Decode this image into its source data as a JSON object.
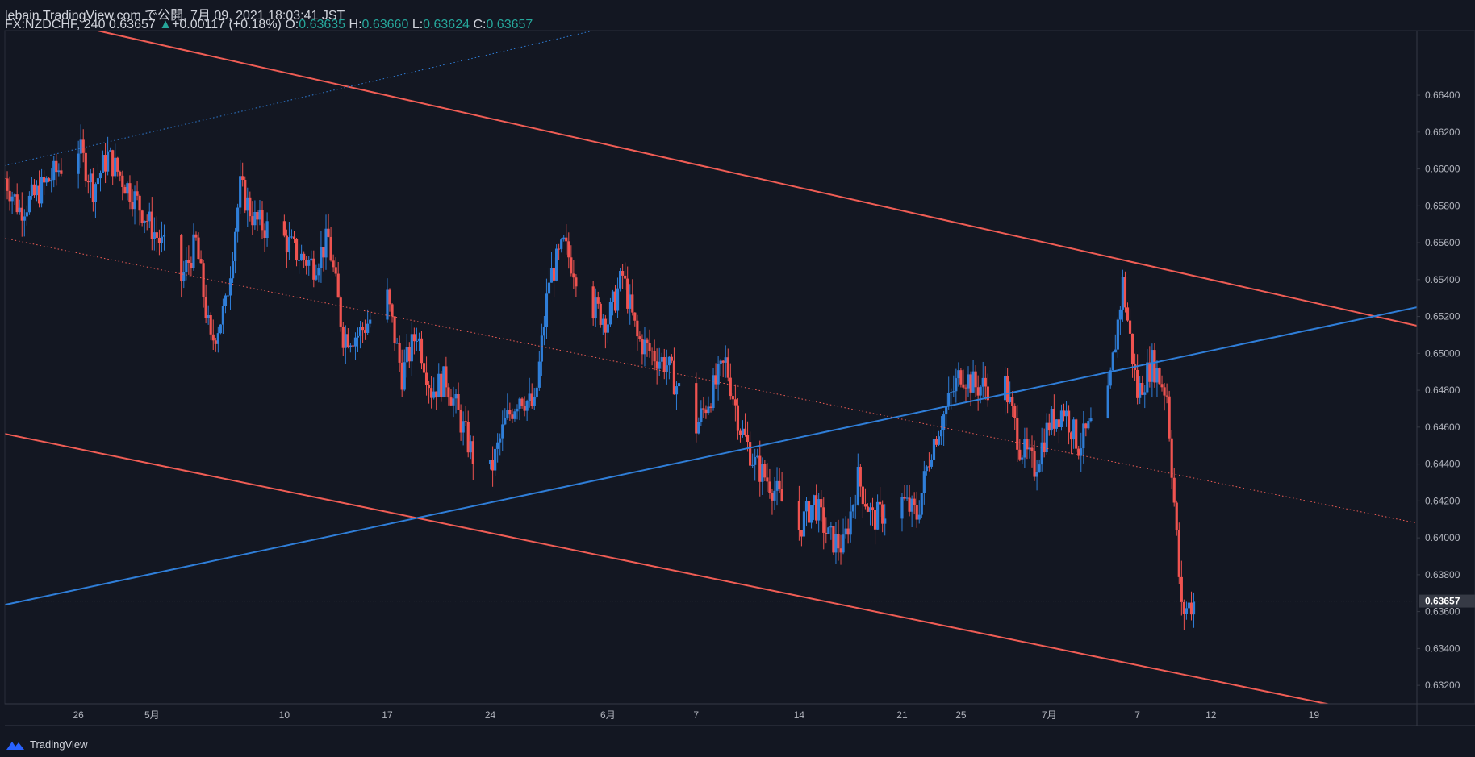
{
  "header": {
    "line1": "lebain TradingView.com で公開, 7月 09, 2021 18:03:41 JST",
    "symbol": "FX:NZDCHF, 240",
    "last": "0.63657",
    "change": "+0.00117 (+0.18%)",
    "o_label": "O:",
    "o_value": "0.63635",
    "h_label": "H:",
    "h_value": "0.63660",
    "l_label": "L:",
    "l_value": "0.63624",
    "c_label": "C:",
    "c_value": "0.63657"
  },
  "footer": {
    "brand": "TradingView"
  },
  "colors": {
    "background": "#131722",
    "up": "#2f7ed8",
    "down": "#ef5350",
    "channel": "#f05d55",
    "trend": "#2f7ed8",
    "axis": "#b2b5be"
  },
  "chart_data": {
    "type": "candlestick",
    "title": "FX:NZDCHF, 240",
    "ylim": [
      0.631,
      0.6675
    ],
    "x_range": [
      "2021-04-21",
      "2021-07-26"
    ],
    "x_ticks": [
      {
        "date": "2021-04-26",
        "label": "26"
      },
      {
        "date": "2021-05-01",
        "label": "5月"
      },
      {
        "date": "2021-05-10",
        "label": "10"
      },
      {
        "date": "2021-05-17",
        "label": "17"
      },
      {
        "date": "2021-05-24",
        "label": "24"
      },
      {
        "date": "2021-06-01",
        "label": "6月"
      },
      {
        "date": "2021-06-07",
        "label": "7"
      },
      {
        "date": "2021-06-14",
        "label": "14"
      },
      {
        "date": "2021-06-21",
        "label": "21"
      },
      {
        "date": "2021-06-25",
        "label": "25"
      },
      {
        "date": "2021-07-01",
        "label": "7月"
      },
      {
        "date": "2021-07-07",
        "label": "7"
      },
      {
        "date": "2021-07-12",
        "label": "12"
      },
      {
        "date": "2021-07-19",
        "label": "19"
      }
    ],
    "y_ticks": [
      "0.66400",
      "0.66200",
      "0.66000",
      "0.65800",
      "0.65600",
      "0.65400",
      "0.65200",
      "0.65000",
      "0.64800",
      "0.64600",
      "0.64400",
      "0.64200",
      "0.64000",
      "0.63800",
      "0.63600",
      "0.63400",
      "0.63200"
    ],
    "last_price": "0.63657",
    "path_points": [
      [
        "2021-04-21",
        0.6595
      ],
      [
        "2021-04-22",
        0.6578
      ],
      [
        "2021-04-23",
        0.6585
      ],
      [
        "2021-04-26",
        0.6612
      ],
      [
        "2021-04-27",
        0.659
      ],
      [
        "2021-04-28",
        0.6607
      ],
      [
        "2021-04-30",
        0.6582
      ],
      [
        "2021-05-03",
        0.654
      ],
      [
        "2021-05-04",
        0.656
      ],
      [
        "2021-05-05",
        0.6505
      ],
      [
        "2021-05-06",
        0.6525
      ],
      [
        "2021-05-07",
        0.659
      ],
      [
        "2021-05-08",
        0.6572
      ],
      [
        "2021-05-10",
        0.6562
      ],
      [
        "2021-05-11",
        0.6553
      ],
      [
        "2021-05-12",
        0.6548
      ],
      [
        "2021-05-13",
        0.6562
      ],
      [
        "2021-05-14",
        0.651
      ],
      [
        "2021-05-15",
        0.651
      ],
      [
        "2021-05-17",
        0.653
      ],
      [
        "2021-05-18",
        0.6488
      ],
      [
        "2021-05-19",
        0.6512
      ],
      [
        "2021-05-20",
        0.648
      ],
      [
        "2021-05-21",
        0.6486
      ],
      [
        "2021-05-23",
        0.644
      ],
      [
        "2021-05-24",
        0.6435
      ],
      [
        "2021-05-25",
        0.6462
      ],
      [
        "2021-05-26",
        0.6478
      ],
      [
        "2021-05-27",
        0.647
      ],
      [
        "2021-05-28",
        0.654
      ],
      [
        "2021-05-29",
        0.6558
      ],
      [
        "2021-05-31",
        0.6525
      ],
      [
        "2021-06-01",
        0.6518
      ],
      [
        "2021-06-02",
        0.6542
      ],
      [
        "2021-06-03",
        0.6508
      ],
      [
        "2021-06-04",
        0.65
      ],
      [
        "2021-06-05",
        0.6494
      ],
      [
        "2021-06-07",
        0.646
      ],
      [
        "2021-06-08",
        0.6478
      ],
      [
        "2021-06-09",
        0.6495
      ],
      [
        "2021-06-10",
        0.646
      ],
      [
        "2021-06-11",
        0.644
      ],
      [
        "2021-06-12",
        0.643
      ],
      [
        "2021-06-14",
        0.6405
      ],
      [
        "2021-06-15",
        0.642
      ],
      [
        "2021-06-16",
        0.64
      ],
      [
        "2021-06-17",
        0.6395
      ],
      [
        "2021-06-18",
        0.6432
      ],
      [
        "2021-06-19",
        0.641
      ],
      [
        "2021-06-21",
        0.642
      ],
      [
        "2021-06-22",
        0.6412
      ],
      [
        "2021-06-23",
        0.645
      ],
      [
        "2021-06-24",
        0.647
      ],
      [
        "2021-06-25",
        0.649
      ],
      [
        "2021-06-26",
        0.6482
      ],
      [
        "2021-06-28",
        0.6483
      ],
      [
        "2021-06-29",
        0.645
      ],
      [
        "2021-06-30",
        0.6438
      ],
      [
        "2021-07-01",
        0.6462
      ],
      [
        "2021-07-02",
        0.647
      ],
      [
        "2021-07-03",
        0.645
      ],
      [
        "2021-07-05",
        0.6475
      ],
      [
        "2021-07-06",
        0.6538
      ],
      [
        "2021-07-07",
        0.6478
      ],
      [
        "2021-07-08",
        0.6495
      ],
      [
        "2021-07-09",
        0.6478
      ],
      [
        "2021-07-10",
        0.636
      ],
      [
        "2021-07-11",
        0.6366
      ]
    ],
    "lines": [
      {
        "name": "channel-upper",
        "style": "solid",
        "color": "#f05d55",
        "p1": [
          "2021-04-20",
          0.6688
        ],
        "p2": [
          "2021-07-26",
          0.6515
        ]
      },
      {
        "name": "channel-mid",
        "style": "dotted",
        "color": "#f05d55",
        "p1": [
          "2021-04-20",
          0.6564
        ],
        "p2": [
          "2021-07-26",
          0.6408
        ]
      },
      {
        "name": "channel-lower",
        "style": "solid",
        "color": "#f05d55",
        "p1": [
          "2021-04-20",
          0.6458
        ],
        "p2": [
          "2021-07-26",
          0.63
        ]
      },
      {
        "name": "trend-support",
        "style": "solid",
        "color": "#2f7ed8",
        "p1": [
          "2021-04-20",
          0.6362
        ],
        "p2": [
          "2021-07-26",
          0.6525
        ]
      },
      {
        "name": "trend-upper",
        "style": "dotted",
        "color": "#2f7ed8",
        "p1": [
          "2021-04-20",
          0.66
        ],
        "p2": [
          "2021-05-31",
          0.6675
        ]
      }
    ]
  }
}
